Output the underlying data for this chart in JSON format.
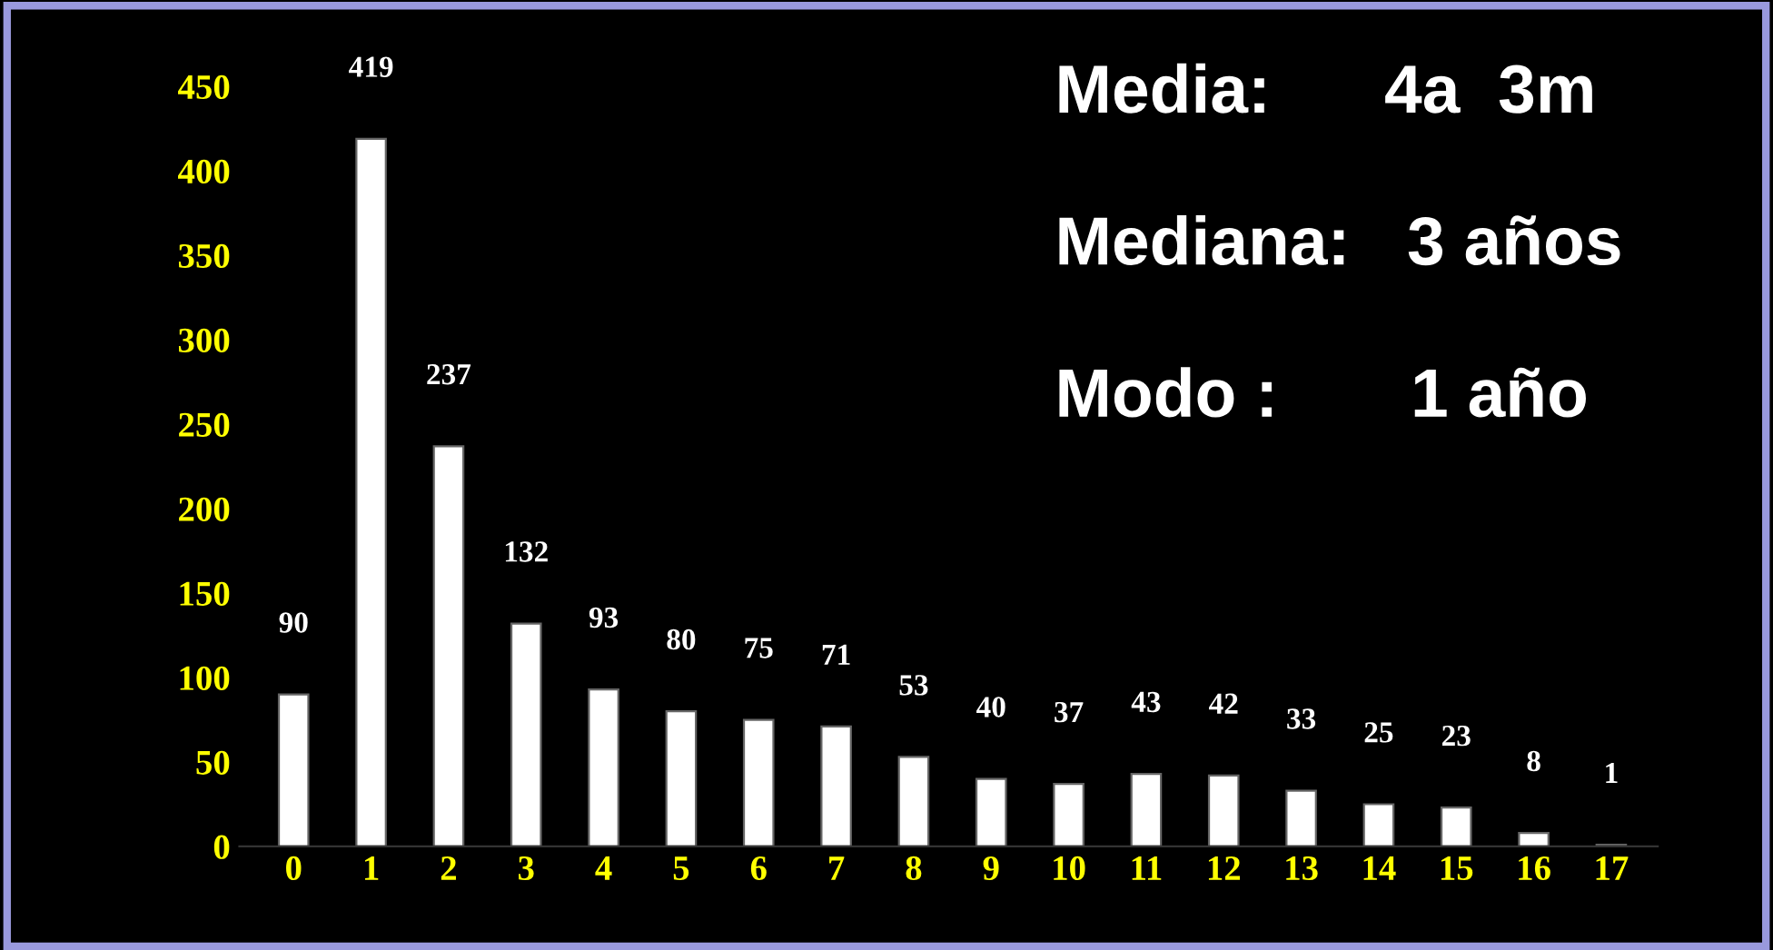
{
  "chart_data": {
    "type": "bar",
    "categories": [
      "0",
      "1",
      "2",
      "3",
      "4",
      "5",
      "6",
      "7",
      "8",
      "9",
      "10",
      "11",
      "12",
      "13",
      "14",
      "15",
      "16",
      "17"
    ],
    "values": [
      90,
      419,
      237,
      132,
      93,
      80,
      75,
      71,
      53,
      40,
      37,
      43,
      42,
      33,
      25,
      23,
      8,
      1
    ],
    "color": "#ffffff",
    "ylim": [
      0,
      450
    ],
    "yticks": [
      0,
      50,
      100,
      150,
      200,
      250,
      300,
      350,
      400,
      450
    ],
    "data_labels": true,
    "grid": false,
    "legend": false,
    "annotations": [
      "Media:      4a  3m",
      "Mediana:   3 años",
      "Modo :       1 año"
    ]
  }
}
